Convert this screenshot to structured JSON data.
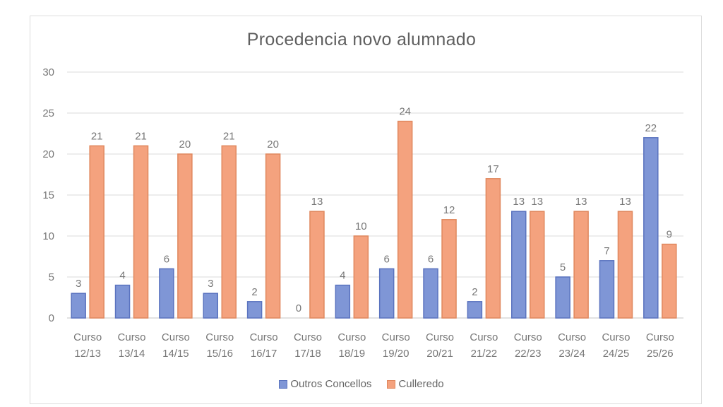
{
  "chart_data": {
    "type": "bar",
    "title": "Procedencia novo alumnado",
    "xlabel": "",
    "ylabel": "",
    "ylim": [
      0,
      30
    ],
    "yticks": [
      0,
      5,
      10,
      15,
      20,
      25,
      30
    ],
    "grid": true,
    "legend_position": "bottom",
    "categories": [
      "Curso 12/13",
      "Curso 13/14",
      "Curso 14/15",
      "Curso 15/16",
      "Curso 16/17",
      "Curso 17/18",
      "Curso 18/19",
      "Curso 19/20",
      "Curso 20/21",
      "Curso 21/22",
      "Curso 22/23",
      "Curso 23/24",
      "Curso 24/25",
      "Curso 25/26"
    ],
    "series": [
      {
        "name": "Outros Concellos",
        "color": "#7f96d6",
        "values": [
          3,
          4,
          6,
          3,
          2,
          0,
          4,
          6,
          6,
          2,
          13,
          5,
          7,
          22
        ]
      },
      {
        "name": "Culleredo",
        "color": "#f4a27e",
        "values": [
          21,
          21,
          20,
          21,
          20,
          13,
          10,
          24,
          12,
          17,
          13,
          13,
          13,
          9
        ]
      }
    ]
  },
  "legend": {
    "items": [
      {
        "label": "Outros Concellos",
        "color": "#7f96d6"
      },
      {
        "label": "Culleredo",
        "color": "#f4a27e"
      }
    ]
  }
}
